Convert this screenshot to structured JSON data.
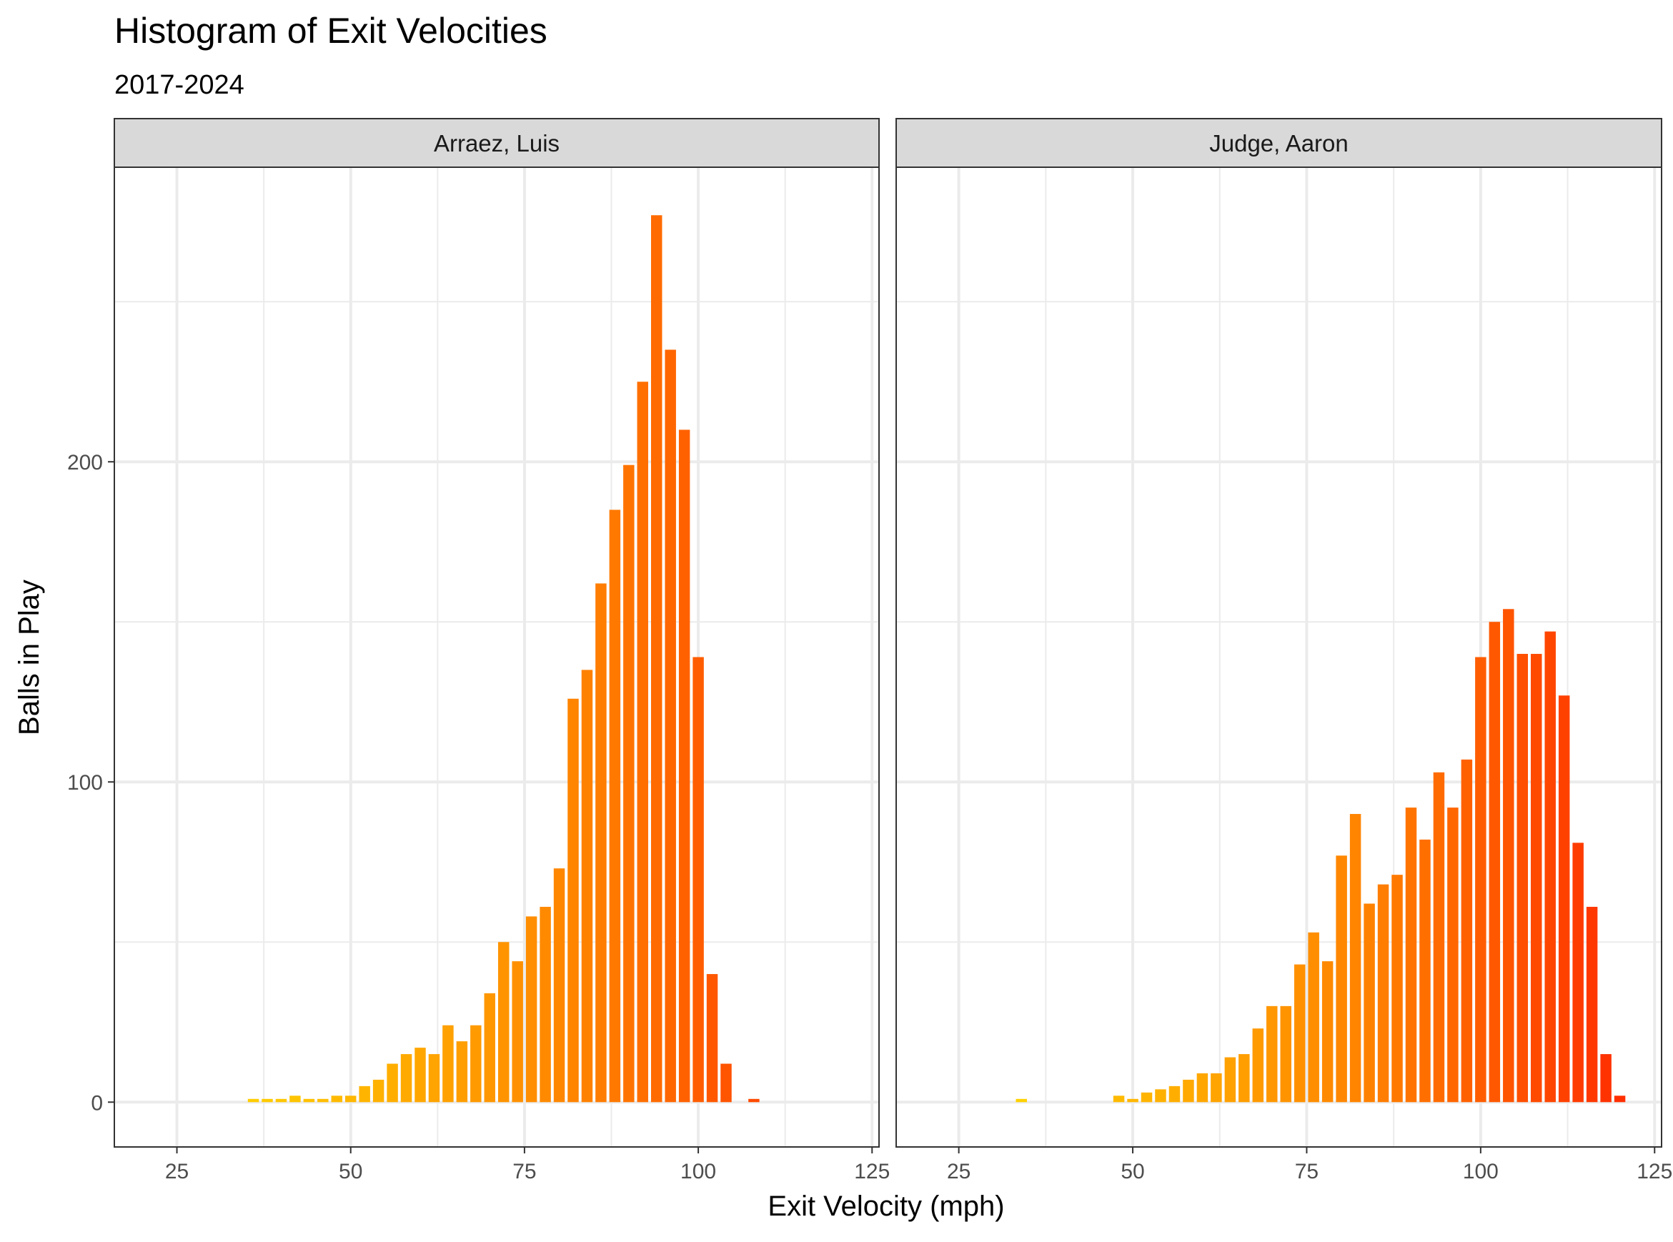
{
  "chart_data": {
    "type": "bar",
    "title": "Histogram of Exit Velocities",
    "subtitle": "2017-2024",
    "xlabel": "Exit Velocity (mph)",
    "ylabel": "Balls in Play",
    "xlim": [
      16,
      126
    ],
    "ylim": [
      -14,
      292
    ],
    "x_ticks": [
      25,
      50,
      75,
      100,
      125
    ],
    "y_ticks": [
      0,
      100,
      200
    ],
    "bin_width": 2,
    "grid": true,
    "legend": "none",
    "colors": {
      "low": "#FFD700",
      "mid": "#FF7F00",
      "high": "#FF2A00",
      "strip": "#D9D9D9",
      "grid": "#EBEBEB",
      "frame": "#333333"
    },
    "panels": [
      {
        "name": "Arraez, Luis",
        "x": [
          36,
          38,
          40,
          42,
          44,
          46,
          48,
          50,
          52,
          54,
          56,
          58,
          60,
          62,
          64,
          66,
          68,
          70,
          72,
          74,
          76,
          78,
          80,
          82,
          84,
          86,
          88,
          90,
          92,
          94,
          96,
          98,
          100,
          102,
          104,
          106,
          108
        ],
        "values": [
          1,
          1,
          1,
          2,
          1,
          1,
          2,
          2,
          5,
          7,
          12,
          15,
          17,
          15,
          24,
          19,
          24,
          34,
          50,
          44,
          58,
          61,
          73,
          126,
          135,
          162,
          185,
          199,
          225,
          277,
          235,
          210,
          139,
          40,
          12,
          0,
          1
        ]
      },
      {
        "name": "Judge, Aaron",
        "x": [
          34,
          48,
          50,
          52,
          54,
          56,
          58,
          60,
          62,
          64,
          66,
          68,
          70,
          72,
          74,
          76,
          78,
          80,
          82,
          84,
          86,
          88,
          90,
          92,
          94,
          96,
          98,
          100,
          102,
          104,
          106,
          108,
          110,
          112,
          114,
          116,
          118,
          120
        ],
        "values": [
          1,
          2,
          1,
          3,
          4,
          5,
          7,
          9,
          9,
          14,
          15,
          23,
          30,
          30,
          43,
          53,
          44,
          77,
          90,
          62,
          68,
          71,
          92,
          82,
          103,
          92,
          107,
          139,
          150,
          154,
          140,
          140,
          147,
          127,
          81,
          61,
          15,
          2
        ]
      }
    ]
  }
}
